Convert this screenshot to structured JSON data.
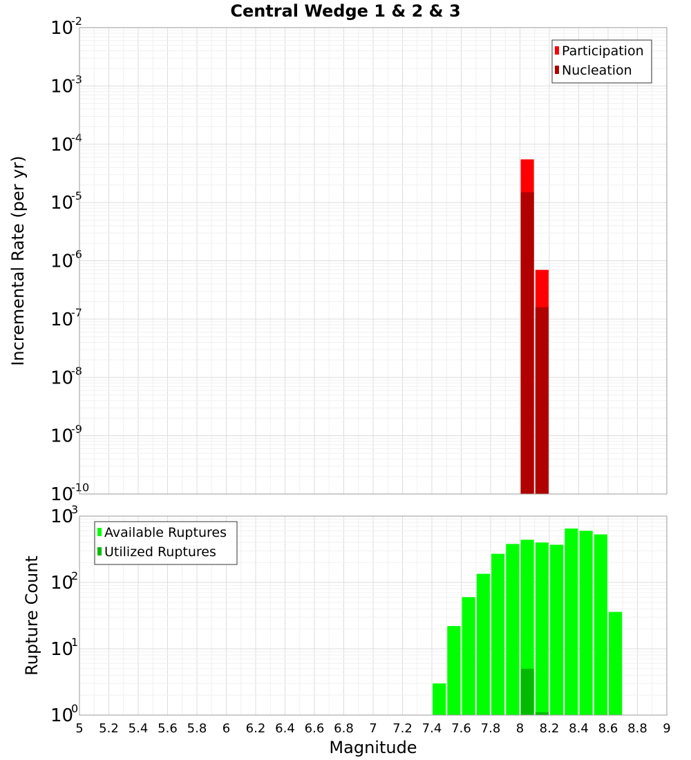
{
  "chart_data": [
    {
      "id": "top",
      "type": "bar",
      "title": "Central Wedge 1 & 2 & 3",
      "xlabel": "",
      "ylabel": "Incremental Rate (per yr)",
      "xlim": [
        5,
        9
      ],
      "yscale": "log",
      "ylim_exp": [
        -10,
        -2
      ],
      "grid": true,
      "bar_width": 0.09,
      "legend_position": "top-right",
      "series": [
        {
          "name": "Participation",
          "color": "#ff0000",
          "x": [
            8.05,
            8.15
          ],
          "values": [
            5.5e-05,
            7e-07
          ]
        },
        {
          "name": "Nucleation",
          "color": "#b00000",
          "x": [
            8.05,
            8.15
          ],
          "values": [
            1.5e-05,
            1.6e-07
          ]
        }
      ]
    },
    {
      "id": "bottom",
      "type": "bar",
      "title": "",
      "xlabel": "Magnitude",
      "ylabel": "Rupture Count",
      "xlim": [
        5,
        9
      ],
      "xticks": [
        "5",
        "5.2",
        "5.4",
        "5.6",
        "5.8",
        "6",
        "6.2",
        "6.4",
        "6.6",
        "6.8",
        "7",
        "7.2",
        "7.4",
        "7.6",
        "7.8",
        "8",
        "8.2",
        "8.4",
        "8.6",
        "8.8",
        "9"
      ],
      "yscale": "log",
      "ylim_exp": [
        0,
        3
      ],
      "grid": true,
      "bar_width": 0.09,
      "legend_position": "top-left",
      "series": [
        {
          "name": "Available Ruptures",
          "color": "#00ff00",
          "x": [
            7.45,
            7.55,
            7.65,
            7.75,
            7.85,
            7.95,
            8.05,
            8.15,
            8.25,
            8.35,
            8.45,
            8.55,
            8.65
          ],
          "values": [
            3,
            22,
            60,
            135,
            270,
            380,
            440,
            400,
            370,
            650,
            600,
            530,
            36
          ]
        },
        {
          "name": "Utilized Ruptures",
          "color": "#00bb00",
          "x": [
            8.05,
            8.15
          ],
          "values": [
            5,
            1.1
          ]
        }
      ]
    }
  ]
}
